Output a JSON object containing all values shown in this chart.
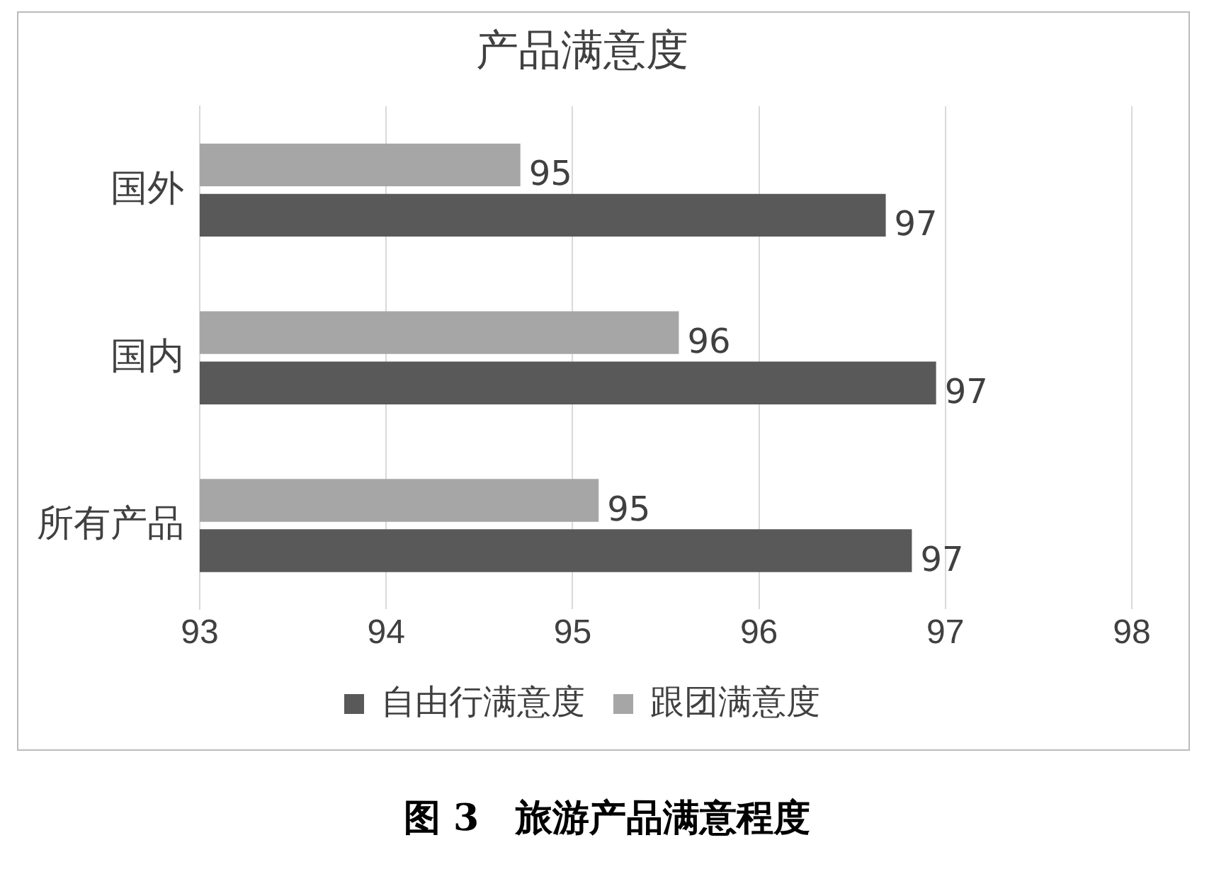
{
  "chart_data": {
    "type": "bar",
    "orientation": "horizontal",
    "title": "产品满意度",
    "categories": [
      "国外",
      "国内",
      "所有产品"
    ],
    "series": [
      {
        "name": "自由行满意度",
        "color": "#595959",
        "values": [
          96.68,
          96.95,
          96.82
        ],
        "value_labels": [
          "97",
          "97",
          "97"
        ]
      },
      {
        "name": "跟团满意度",
        "color": "#a6a6a6",
        "values": [
          94.72,
          95.57,
          95.14
        ],
        "value_labels": [
          "95",
          "96",
          "95"
        ]
      }
    ],
    "xlim": [
      93,
      98
    ],
    "xticks": [
      93,
      94,
      95,
      96,
      97,
      98
    ],
    "grid": "x",
    "legend": "bottom",
    "annotations": [
      "图 3　旅游产品满意程度"
    ]
  }
}
